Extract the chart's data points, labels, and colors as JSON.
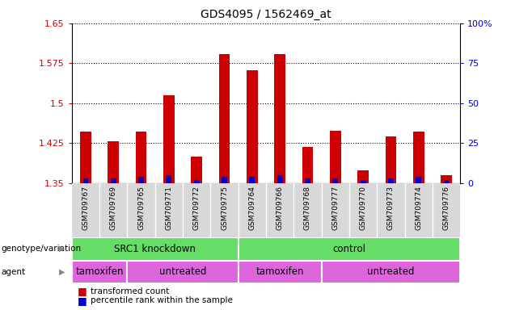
{
  "title": "GDS4095 / 1562469_at",
  "samples": [
    "GSM709767",
    "GSM709769",
    "GSM709765",
    "GSM709771",
    "GSM709772",
    "GSM709775",
    "GSM709764",
    "GSM709766",
    "GSM709768",
    "GSM709777",
    "GSM709770",
    "GSM709773",
    "GSM709774",
    "GSM709776"
  ],
  "transformed_count": [
    1.447,
    1.428,
    1.447,
    1.515,
    1.4,
    1.592,
    1.562,
    1.592,
    1.418,
    1.448,
    1.373,
    1.437,
    1.447,
    1.365
  ],
  "percentile_rank": [
    3,
    3,
    4,
    5,
    2,
    4,
    4,
    5,
    3,
    3,
    2,
    3,
    4,
    2
  ],
  "ylim_left": [
    1.35,
    1.65
  ],
  "ylim_right": [
    0,
    100
  ],
  "yticks_left": [
    1.35,
    1.425,
    1.5,
    1.575,
    1.65
  ],
  "yticks_right": [
    0,
    25,
    50,
    75,
    100
  ],
  "ytick_labels_left": [
    "1.35",
    "1.425",
    "1.5",
    "1.575",
    "1.65"
  ],
  "ytick_labels_right": [
    "0",
    "25",
    "50",
    "75",
    "100%"
  ],
  "bar_color_red": "#cc0000",
  "bar_color_blue": "#0000cc",
  "bar_width": 0.4,
  "blue_bar_width": 0.2,
  "genotype_groups": [
    {
      "label": "SRC1 knockdown",
      "start": 0,
      "end": 6,
      "color": "#66dd66"
    },
    {
      "label": "control",
      "start": 6,
      "end": 14,
      "color": "#66dd66"
    }
  ],
  "agent_groups": [
    {
      "label": "tamoxifen",
      "start": 0,
      "end": 2,
      "color": "#dd66dd"
    },
    {
      "label": "untreated",
      "start": 2,
      "end": 6,
      "color": "#dd66dd"
    },
    {
      "label": "tamoxifen",
      "start": 6,
      "end": 9,
      "color": "#dd66dd"
    },
    {
      "label": "untreated",
      "start": 9,
      "end": 14,
      "color": "#dd66dd"
    }
  ],
  "legend_items": [
    {
      "label": "transformed count",
      "color": "#cc0000"
    },
    {
      "label": "percentile rank within the sample",
      "color": "#0000cc"
    }
  ],
  "label_color_left": "#cc0000",
  "label_color_right": "#0000cc",
  "bg_gray": "#d8d8d8"
}
